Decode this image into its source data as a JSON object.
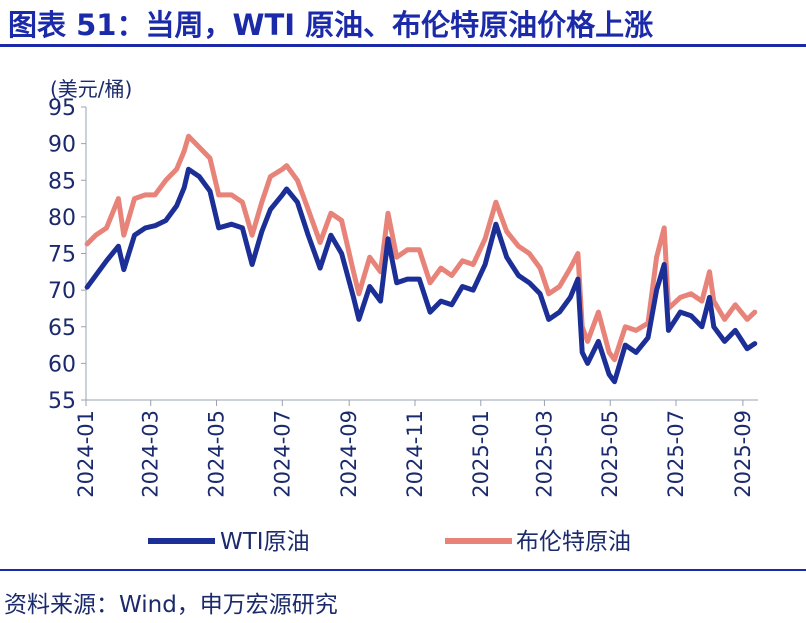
{
  "header": {
    "title": "图表 51：当周，WTI 原油、布伦特原油价格上涨"
  },
  "footer": {
    "source": "资料来源：Wind，申万宏源研究"
  },
  "chart_data": {
    "type": "line",
    "ylabel": "(美元/桶)",
    "ylim": [
      55,
      95
    ],
    "yticks": [
      55,
      60,
      65,
      70,
      75,
      80,
      85,
      90,
      95
    ],
    "xlim": [
      "2024-01",
      "2025-09"
    ],
    "xticks": [
      "2024-01",
      "2024-03",
      "2024-05",
      "2024-07",
      "2024-09",
      "2024-11",
      "2025-01",
      "2025-03",
      "2025-05",
      "2025-07",
      "2025-09"
    ],
    "legend_position": "bottom",
    "series": [
      {
        "name": "WTI原油",
        "color": "#1c2f96",
        "points": [
          [
            "2024-01-02",
            70.4
          ],
          [
            "2024-01-10",
            72.0
          ],
          [
            "2024-01-20",
            74.0
          ],
          [
            "2024-01-31",
            76.0
          ],
          [
            "2024-02-05",
            72.8
          ],
          [
            "2024-02-15",
            77.5
          ],
          [
            "2024-02-25",
            78.5
          ],
          [
            "2024-03-05",
            78.8
          ],
          [
            "2024-03-15",
            79.5
          ],
          [
            "2024-03-25",
            81.5
          ],
          [
            "2024-04-01",
            84.0
          ],
          [
            "2024-04-05",
            86.5
          ],
          [
            "2024-04-15",
            85.5
          ],
          [
            "2024-04-25",
            83.5
          ],
          [
            "2024-05-03",
            78.5
          ],
          [
            "2024-05-15",
            79.0
          ],
          [
            "2024-05-25",
            78.5
          ],
          [
            "2024-06-03",
            73.5
          ],
          [
            "2024-06-12",
            78.0
          ],
          [
            "2024-06-20",
            81.0
          ],
          [
            "2024-07-01",
            83.0
          ],
          [
            "2024-07-05",
            83.8
          ],
          [
            "2024-07-15",
            82.0
          ],
          [
            "2024-07-25",
            77.5
          ],
          [
            "2024-08-05",
            73.0
          ],
          [
            "2024-08-15",
            77.5
          ],
          [
            "2024-08-25",
            75.0
          ],
          [
            "2024-09-05",
            69.0
          ],
          [
            "2024-09-10",
            66.0
          ],
          [
            "2024-09-20",
            70.5
          ],
          [
            "2024-09-30",
            68.5
          ],
          [
            "2024-10-07",
            77.0
          ],
          [
            "2024-10-15",
            71.0
          ],
          [
            "2024-10-25",
            71.5
          ],
          [
            "2024-11-05",
            71.5
          ],
          [
            "2024-11-15",
            67.0
          ],
          [
            "2024-11-25",
            68.5
          ],
          [
            "2024-12-05",
            68.0
          ],
          [
            "2024-12-15",
            70.5
          ],
          [
            "2024-12-25",
            70.0
          ],
          [
            "2025-01-05",
            73.5
          ],
          [
            "2025-01-15",
            79.0
          ],
          [
            "2025-01-25",
            74.5
          ],
          [
            "2025-02-05",
            72.0
          ],
          [
            "2025-02-15",
            71.0
          ],
          [
            "2025-02-25",
            69.5
          ],
          [
            "2025-03-05",
            66.0
          ],
          [
            "2025-03-15",
            67.0
          ],
          [
            "2025-03-25",
            69.0
          ],
          [
            "2025-04-01",
            71.5
          ],
          [
            "2025-04-05",
            61.5
          ],
          [
            "2025-04-10",
            60.0
          ],
          [
            "2025-04-20",
            63.0
          ],
          [
            "2025-04-30",
            58.5
          ],
          [
            "2025-05-05",
            57.5
          ],
          [
            "2025-05-15",
            62.5
          ],
          [
            "2025-05-25",
            61.5
          ],
          [
            "2025-06-05",
            63.5
          ],
          [
            "2025-06-13",
            70.0
          ],
          [
            "2025-06-20",
            73.5
          ],
          [
            "2025-06-24",
            64.5
          ],
          [
            "2025-07-05",
            67.0
          ],
          [
            "2025-07-15",
            66.5
          ],
          [
            "2025-07-25",
            65.0
          ],
          [
            "2025-08-01",
            69.0
          ],
          [
            "2025-08-05",
            65.0
          ],
          [
            "2025-08-15",
            63.0
          ],
          [
            "2025-08-25",
            64.5
          ],
          [
            "2025-09-05",
            62.0
          ],
          [
            "2025-09-12",
            62.7
          ]
        ]
      },
      {
        "name": "布伦特原油",
        "color": "#e8837a",
        "points": [
          [
            "2024-01-02",
            76.3
          ],
          [
            "2024-01-10",
            77.5
          ],
          [
            "2024-01-20",
            78.5
          ],
          [
            "2024-01-31",
            82.5
          ],
          [
            "2024-02-05",
            77.5
          ],
          [
            "2024-02-15",
            82.5
          ],
          [
            "2024-02-25",
            83.0
          ],
          [
            "2024-03-05",
            83.0
          ],
          [
            "2024-03-15",
            85.0
          ],
          [
            "2024-03-25",
            86.5
          ],
          [
            "2024-04-01",
            89.0
          ],
          [
            "2024-04-05",
            91.0
          ],
          [
            "2024-04-15",
            89.5
          ],
          [
            "2024-04-25",
            88.0
          ],
          [
            "2024-05-03",
            83.0
          ],
          [
            "2024-05-15",
            83.0
          ],
          [
            "2024-05-25",
            82.0
          ],
          [
            "2024-06-03",
            77.5
          ],
          [
            "2024-06-12",
            82.0
          ],
          [
            "2024-06-20",
            85.5
          ],
          [
            "2024-07-01",
            86.5
          ],
          [
            "2024-07-05",
            87.0
          ],
          [
            "2024-07-15",
            85.0
          ],
          [
            "2024-07-25",
            81.0
          ],
          [
            "2024-08-05",
            76.5
          ],
          [
            "2024-08-15",
            80.5
          ],
          [
            "2024-08-25",
            79.5
          ],
          [
            "2024-09-05",
            72.5
          ],
          [
            "2024-09-10",
            69.5
          ],
          [
            "2024-09-20",
            74.5
          ],
          [
            "2024-09-30",
            72.5
          ],
          [
            "2024-10-07",
            80.5
          ],
          [
            "2024-10-15",
            74.5
          ],
          [
            "2024-10-25",
            75.5
          ],
          [
            "2024-11-05",
            75.5
          ],
          [
            "2024-11-15",
            71.0
          ],
          [
            "2024-11-25",
            73.0
          ],
          [
            "2024-12-05",
            72.0
          ],
          [
            "2024-12-15",
            74.0
          ],
          [
            "2024-12-25",
            73.5
          ],
          [
            "2025-01-05",
            77.0
          ],
          [
            "2025-01-15",
            82.0
          ],
          [
            "2025-01-25",
            78.0
          ],
          [
            "2025-02-05",
            76.0
          ],
          [
            "2025-02-15",
            75.0
          ],
          [
            "2025-02-25",
            73.0
          ],
          [
            "2025-03-05",
            69.5
          ],
          [
            "2025-03-15",
            70.5
          ],
          [
            "2025-03-25",
            73.0
          ],
          [
            "2025-04-01",
            75.0
          ],
          [
            "2025-04-05",
            65.0
          ],
          [
            "2025-04-10",
            63.0
          ],
          [
            "2025-04-20",
            67.0
          ],
          [
            "2025-04-30",
            61.5
          ],
          [
            "2025-05-05",
            60.5
          ],
          [
            "2025-05-15",
            65.0
          ],
          [
            "2025-05-25",
            64.5
          ],
          [
            "2025-06-05",
            65.5
          ],
          [
            "2025-06-13",
            74.5
          ],
          [
            "2025-06-20",
            78.5
          ],
          [
            "2025-06-24",
            67.5
          ],
          [
            "2025-07-05",
            69.0
          ],
          [
            "2025-07-15",
            69.5
          ],
          [
            "2025-07-25",
            68.5
          ],
          [
            "2025-08-01",
            72.5
          ],
          [
            "2025-08-05",
            68.5
          ],
          [
            "2025-08-15",
            66.0
          ],
          [
            "2025-08-25",
            68.0
          ],
          [
            "2025-09-05",
            66.0
          ],
          [
            "2025-09-12",
            67.0
          ]
        ]
      }
    ]
  }
}
